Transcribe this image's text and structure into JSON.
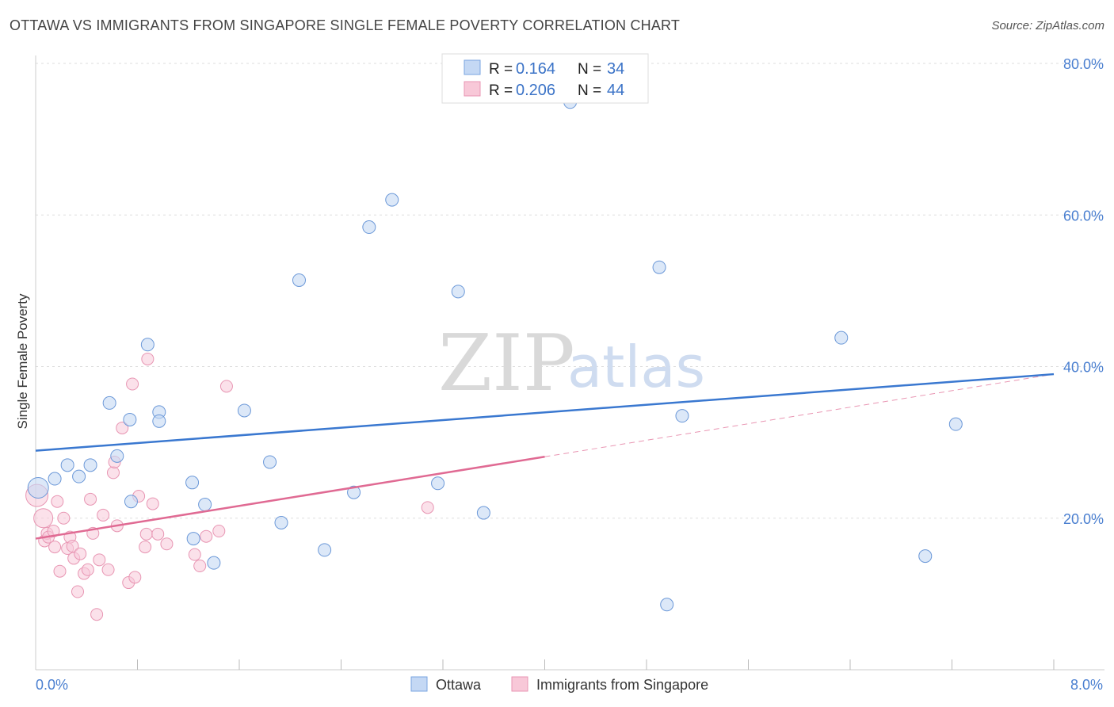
{
  "header": {
    "title": "OTTAWA VS IMMIGRANTS FROM SINGAPORE SINGLE FEMALE POVERTY CORRELATION CHART",
    "source": "Source: ZipAtlas.com"
  },
  "watermark": {
    "part1": "ZIP",
    "part2": "atlas"
  },
  "colors": {
    "ottawa": "#3a78d0",
    "ottawa_fill": "#c4d8f4",
    "singapore": "#e06a93",
    "singapore_fill": "#f8c8d8",
    "grid": "#dddddd",
    "tick_label": "#4a7fd0"
  },
  "legend_box": {
    "rows": [
      {
        "r_label": "R =",
        "r_value": "0.164",
        "n_label": "N =",
        "n_value": "34"
      },
      {
        "r_label": "R =",
        "r_value": "0.206",
        "n_label": "N =",
        "n_value": "44"
      }
    ]
  },
  "chart_data": {
    "type": "scatter",
    "title": "OTTAWA VS IMMIGRANTS FROM SINGAPORE SINGLE FEMALE POVERTY CORRELATION CHART",
    "xlabel": "",
    "ylabel": "Single Female Poverty",
    "xlim": [
      0,
      8
    ],
    "ylim": [
      0,
      80
    ],
    "x_tick_labels": [
      "0.0%",
      "8.0%"
    ],
    "y_ticks": [
      20,
      40,
      60,
      80
    ],
    "y_tick_labels": [
      "20.0%",
      "40.0%",
      "60.0%",
      "80.0%"
    ],
    "grid": true,
    "legend_position": "bottom",
    "series": [
      {
        "name": "Ottawa",
        "color": "#3a78d0",
        "r": 0.164,
        "n": 34,
        "trend": {
          "x": [
            0,
            8
          ],
          "y": [
            28.9,
            39.0
          ]
        },
        "points": [
          [
            0.02,
            24.0
          ],
          [
            0.15,
            25.2
          ],
          [
            0.25,
            27.0
          ],
          [
            0.34,
            25.5
          ],
          [
            0.43,
            27.0
          ],
          [
            0.58,
            35.2
          ],
          [
            0.64,
            28.2
          ],
          [
            0.75,
            22.2
          ],
          [
            0.74,
            33.0
          ],
          [
            0.97,
            34.0
          ],
          [
            0.88,
            42.9
          ],
          [
            0.97,
            32.8
          ],
          [
            1.23,
            24.7
          ],
          [
            1.24,
            17.3
          ],
          [
            1.33,
            21.8
          ],
          [
            1.4,
            14.1
          ],
          [
            1.64,
            34.2
          ],
          [
            1.84,
            27.4
          ],
          [
            2.07,
            51.4
          ],
          [
            1.93,
            19.4
          ],
          [
            2.27,
            15.8
          ],
          [
            2.5,
            23.4
          ],
          [
            2.62,
            58.4
          ],
          [
            2.8,
            62.0
          ],
          [
            3.16,
            24.6
          ],
          [
            3.32,
            49.9
          ],
          [
            3.52,
            20.7
          ],
          [
            4.2,
            74.9
          ],
          [
            4.9,
            53.1
          ],
          [
            4.96,
            8.6
          ],
          [
            5.08,
            33.5
          ],
          [
            6.33,
            43.8
          ],
          [
            6.99,
            15.0
          ],
          [
            7.23,
            32.4
          ]
        ]
      },
      {
        "name": "Immigrants from Singapore",
        "color": "#e06a93",
        "r": 0.206,
        "n": 44,
        "trend": {
          "x": [
            0,
            4
          ],
          "y": [
            17.3,
            28.1
          ]
        },
        "trend_ext": {
          "x": [
            4,
            8
          ],
          "y": [
            28.1,
            39.0
          ]
        },
        "points": [
          [
            0.01,
            23.0
          ],
          [
            0.06,
            20.0
          ],
          [
            0.07,
            17.0
          ],
          [
            0.09,
            18.0
          ],
          [
            0.1,
            17.5
          ],
          [
            0.14,
            18.3
          ],
          [
            0.15,
            16.2
          ],
          [
            0.17,
            22.2
          ],
          [
            0.19,
            13.0
          ],
          [
            0.22,
            20.0
          ],
          [
            0.25,
            16.0
          ],
          [
            0.27,
            17.5
          ],
          [
            0.29,
            16.3
          ],
          [
            0.3,
            14.7
          ],
          [
            0.33,
            10.3
          ],
          [
            0.35,
            15.3
          ],
          [
            0.38,
            12.7
          ],
          [
            0.41,
            13.2
          ],
          [
            0.43,
            22.5
          ],
          [
            0.45,
            18.0
          ],
          [
            0.48,
            7.3
          ],
          [
            0.5,
            14.5
          ],
          [
            0.53,
            20.4
          ],
          [
            0.57,
            13.2
          ],
          [
            0.61,
            26.0
          ],
          [
            0.62,
            27.4
          ],
          [
            0.64,
            19.0
          ],
          [
            0.68,
            31.9
          ],
          [
            0.73,
            11.5
          ],
          [
            0.76,
            37.7
          ],
          [
            0.78,
            12.2
          ],
          [
            0.81,
            22.9
          ],
          [
            0.86,
            16.2
          ],
          [
            0.87,
            17.9
          ],
          [
            0.88,
            41.0
          ],
          [
            0.92,
            21.9
          ],
          [
            0.96,
            17.9
          ],
          [
            1.03,
            16.6
          ],
          [
            1.25,
            15.2
          ],
          [
            1.29,
            13.7
          ],
          [
            1.34,
            17.6
          ],
          [
            1.44,
            18.3
          ],
          [
            1.5,
            37.4
          ],
          [
            3.08,
            21.4
          ]
        ]
      }
    ]
  },
  "bottom_legend": {
    "items": [
      {
        "label": "Ottawa"
      },
      {
        "label": "Immigrants from Singapore"
      }
    ]
  }
}
